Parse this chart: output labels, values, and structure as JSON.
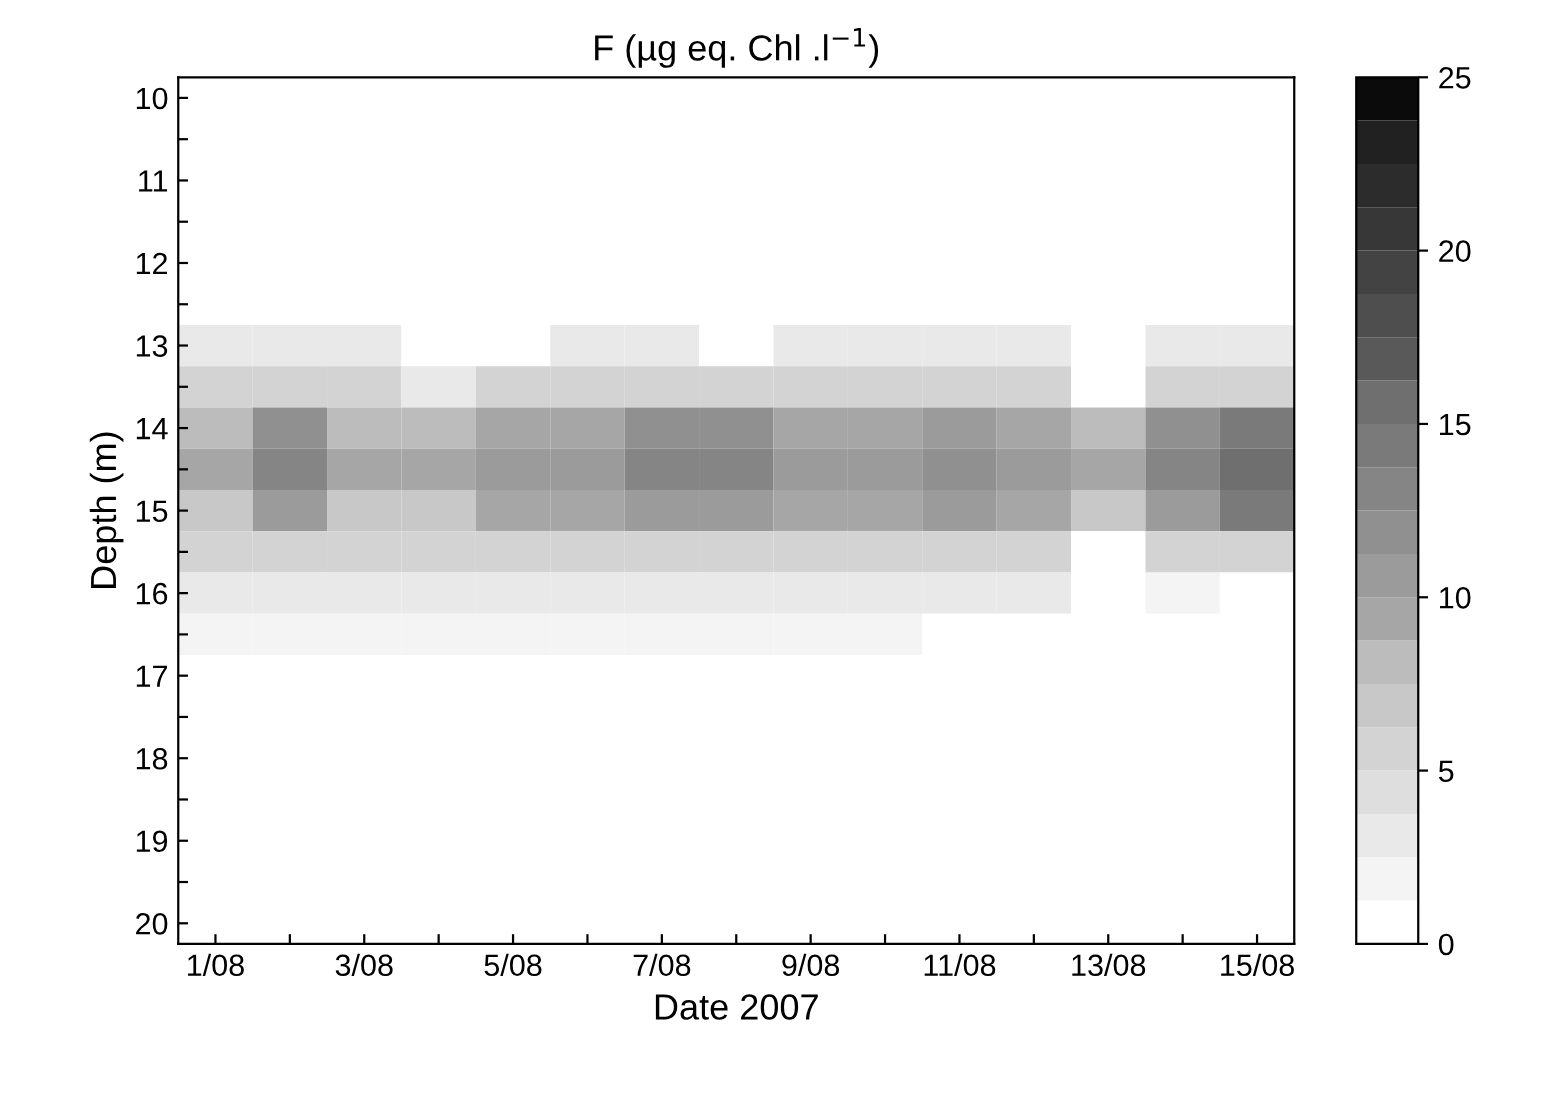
{
  "chart_data": {
    "type": "heatmap",
    "title": "F (µg eq. Chl .l$^{−1}$)",
    "xlabel": "Date 2007",
    "ylabel": "Depth (m)",
    "categories": [
      "1/08",
      null,
      "3/08",
      null,
      "5/08",
      null,
      "7/08",
      null,
      "9/08",
      null,
      "11/08",
      null,
      "13/08",
      null,
      "15/08"
    ],
    "y_categories": [
      "10",
      null,
      "11",
      null,
      "12",
      null,
      "13",
      null,
      "14",
      null,
      "15",
      null,
      "16",
      null,
      "17",
      null,
      "18",
      null,
      "19",
      null,
      "20"
    ],
    "cells": [
      [
        0,
        0,
        0,
        0,
        0,
        0,
        0,
        0,
        0,
        0,
        0,
        0,
        0,
        0,
        0
      ],
      [
        0,
        0,
        0,
        0,
        0,
        0,
        0,
        0,
        0,
        0,
        0,
        0,
        0,
        0,
        0
      ],
      [
        0,
        0,
        0,
        0,
        0,
        0,
        0,
        0,
        0,
        0,
        0,
        0,
        0,
        0,
        0
      ],
      [
        0,
        0,
        0,
        0,
        0,
        0,
        0,
        0,
        0,
        0,
        0,
        0,
        0,
        0,
        0
      ],
      [
        0,
        1,
        0,
        0,
        0,
        0,
        0,
        0,
        0,
        0,
        0,
        0,
        0,
        0,
        0
      ],
      [
        0,
        1,
        1,
        0,
        0,
        1,
        1,
        0,
        1,
        0,
        0,
        0,
        0,
        1,
        0
      ],
      [
        2.5,
        2.5,
        2.5,
        0,
        1,
        2.5,
        2.5,
        1,
        2.5,
        2.5,
        2.5,
        2.5,
        0,
        2.5,
        2.5
      ],
      [
        5,
        5,
        5,
        3,
        5,
        5,
        5,
        5,
        5,
        5,
        5,
        5,
        0,
        5,
        5
      ],
      [
        7.5,
        11.5,
        7.5,
        7.5,
        9.5,
        9.5,
        11.5,
        11.5,
        9.5,
        9.5,
        10.5,
        9.5,
        7.5,
        11.5,
        14.5
      ],
      [
        9,
        13,
        9,
        9,
        11,
        11,
        13,
        13,
        11,
        11,
        12,
        11,
        9,
        13,
        16
      ],
      [
        7,
        11,
        7,
        7,
        9,
        9,
        11,
        11,
        9,
        9,
        10,
        9,
        7,
        11,
        14
      ],
      [
        6,
        6,
        6,
        6,
        6,
        6,
        6,
        6,
        6,
        6,
        6,
        6,
        0,
        6,
        6
      ],
      [
        3,
        3,
        3,
        3,
        3,
        3,
        3,
        3,
        3,
        3,
        3,
        3,
        0,
        2,
        0
      ],
      [
        1.5,
        1.5,
        1.5,
        1.5,
        1.5,
        1.5,
        1.5,
        1.5,
        1.5,
        1.5,
        0,
        0,
        0,
        0,
        0
      ],
      [
        1,
        1,
        1,
        1,
        1,
        1,
        1,
        1,
        1,
        1,
        0,
        0,
        0,
        0,
        0
      ],
      [
        0.5,
        0,
        0,
        0.5,
        0,
        0.5,
        0.5,
        0.5,
        0,
        0,
        0,
        0,
        0,
        0,
        0
      ],
      [
        0,
        0,
        0,
        0,
        0,
        0,
        0,
        0,
        0,
        0,
        0,
        0,
        0,
        0,
        0
      ],
      [
        0,
        0,
        0,
        0,
        0,
        0,
        0,
        0,
        0,
        0,
        0,
        0,
        0,
        0,
        0
      ],
      [
        0,
        0,
        0,
        0,
        0,
        0,
        0,
        0,
        0,
        0,
        0,
        0,
        0,
        0,
        0
      ],
      [
        0,
        0,
        0,
        0,
        0,
        0,
        0,
        0,
        0,
        0,
        0,
        0,
        0,
        0,
        0
      ],
      [
        0,
        0,
        0,
        0,
        0,
        0,
        0,
        0,
        0,
        0,
        0,
        0,
        0,
        0,
        0
      ]
    ],
    "clim": [
      0,
      25
    ],
    "cticks": [
      0,
      5,
      10,
      15,
      20,
      25
    ]
  }
}
